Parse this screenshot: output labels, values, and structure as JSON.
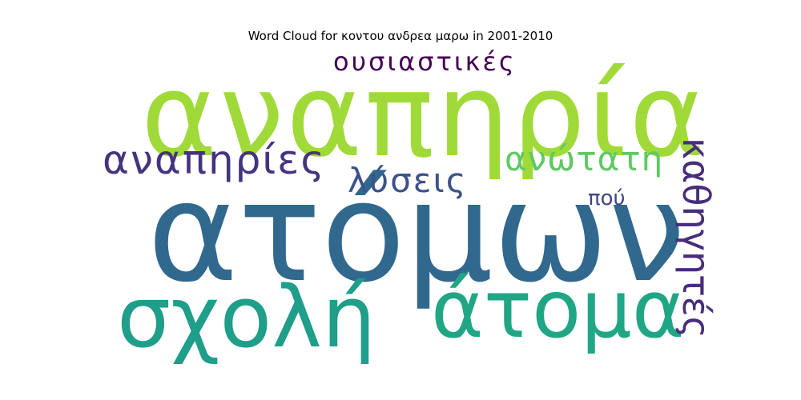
{
  "chart_data": {
    "type": "wordcloud",
    "title": "Word Cloud for κοντου ανδρεα μαρω in 2001-2010",
    "words": [
      {
        "text": "αναπηρία",
        "color": "#a0da39",
        "orientation": "horizontal"
      },
      {
        "text": "ατόμων",
        "color": "#31688e",
        "orientation": "horizontal"
      },
      {
        "text": "σχολή",
        "color": "#1f9e89",
        "orientation": "horizontal"
      },
      {
        "text": "άτομα",
        "color": "#21a685",
        "orientation": "horizontal"
      },
      {
        "text": "αναπηρίες",
        "color": "#46337f",
        "orientation": "horizontal"
      },
      {
        "text": "καθηγητές",
        "color": "#472d7b",
        "orientation": "vertical"
      },
      {
        "text": "ανώτατη",
        "color": "#5ec962",
        "orientation": "horizontal"
      },
      {
        "text": "λύσεις",
        "color": "#3b528b",
        "orientation": "horizontal"
      },
      {
        "text": "ουσιαστικές",
        "color": "#440154",
        "orientation": "horizontal"
      },
      {
        "text": "πού",
        "color": "#414487",
        "orientation": "horizontal"
      }
    ]
  }
}
